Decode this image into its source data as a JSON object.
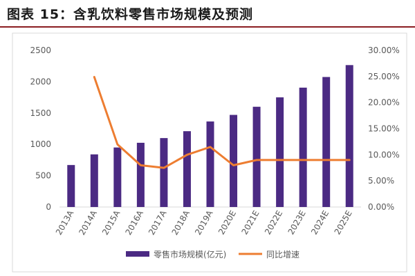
{
  "title": "图表 15：含乳饮料零售市场规模及预测",
  "chart_data": {
    "type": "bar",
    "categories": [
      "2013A",
      "2014A",
      "2015A",
      "2016A",
      "2017A",
      "2018A",
      "2019A",
      "2020E",
      "2021E",
      "2022E",
      "2023E",
      "2024E",
      "2025E"
    ],
    "series": [
      {
        "name": "零售市场规模(亿元)",
        "type": "bar",
        "axis": "left",
        "color": "#4b2a83",
        "values": [
          670,
          840,
          950,
          1025,
          1100,
          1210,
          1365,
          1470,
          1600,
          1750,
          1905,
          2075,
          2265
        ]
      },
      {
        "name": "同比增速",
        "type": "line",
        "axis": "right",
        "color": "#ed7d31",
        "values": [
          null,
          0.249,
          0.12,
          0.08,
          0.075,
          0.1,
          0.115,
          0.08,
          0.09,
          0.09,
          0.09,
          0.09,
          0.09
        ]
      }
    ],
    "ylim_left": [
      0,
      2500
    ],
    "yticks_left": [
      "0",
      "500",
      "1000",
      "1500",
      "2000",
      "2500"
    ],
    "ylim_right": [
      0,
      0.3
    ],
    "yticks_right": [
      "0.00%",
      "5.00%",
      "10.00%",
      "15.00%",
      "20.00%",
      "25.00%",
      "30.00%"
    ],
    "grid": false,
    "legend_position": "bottom"
  }
}
